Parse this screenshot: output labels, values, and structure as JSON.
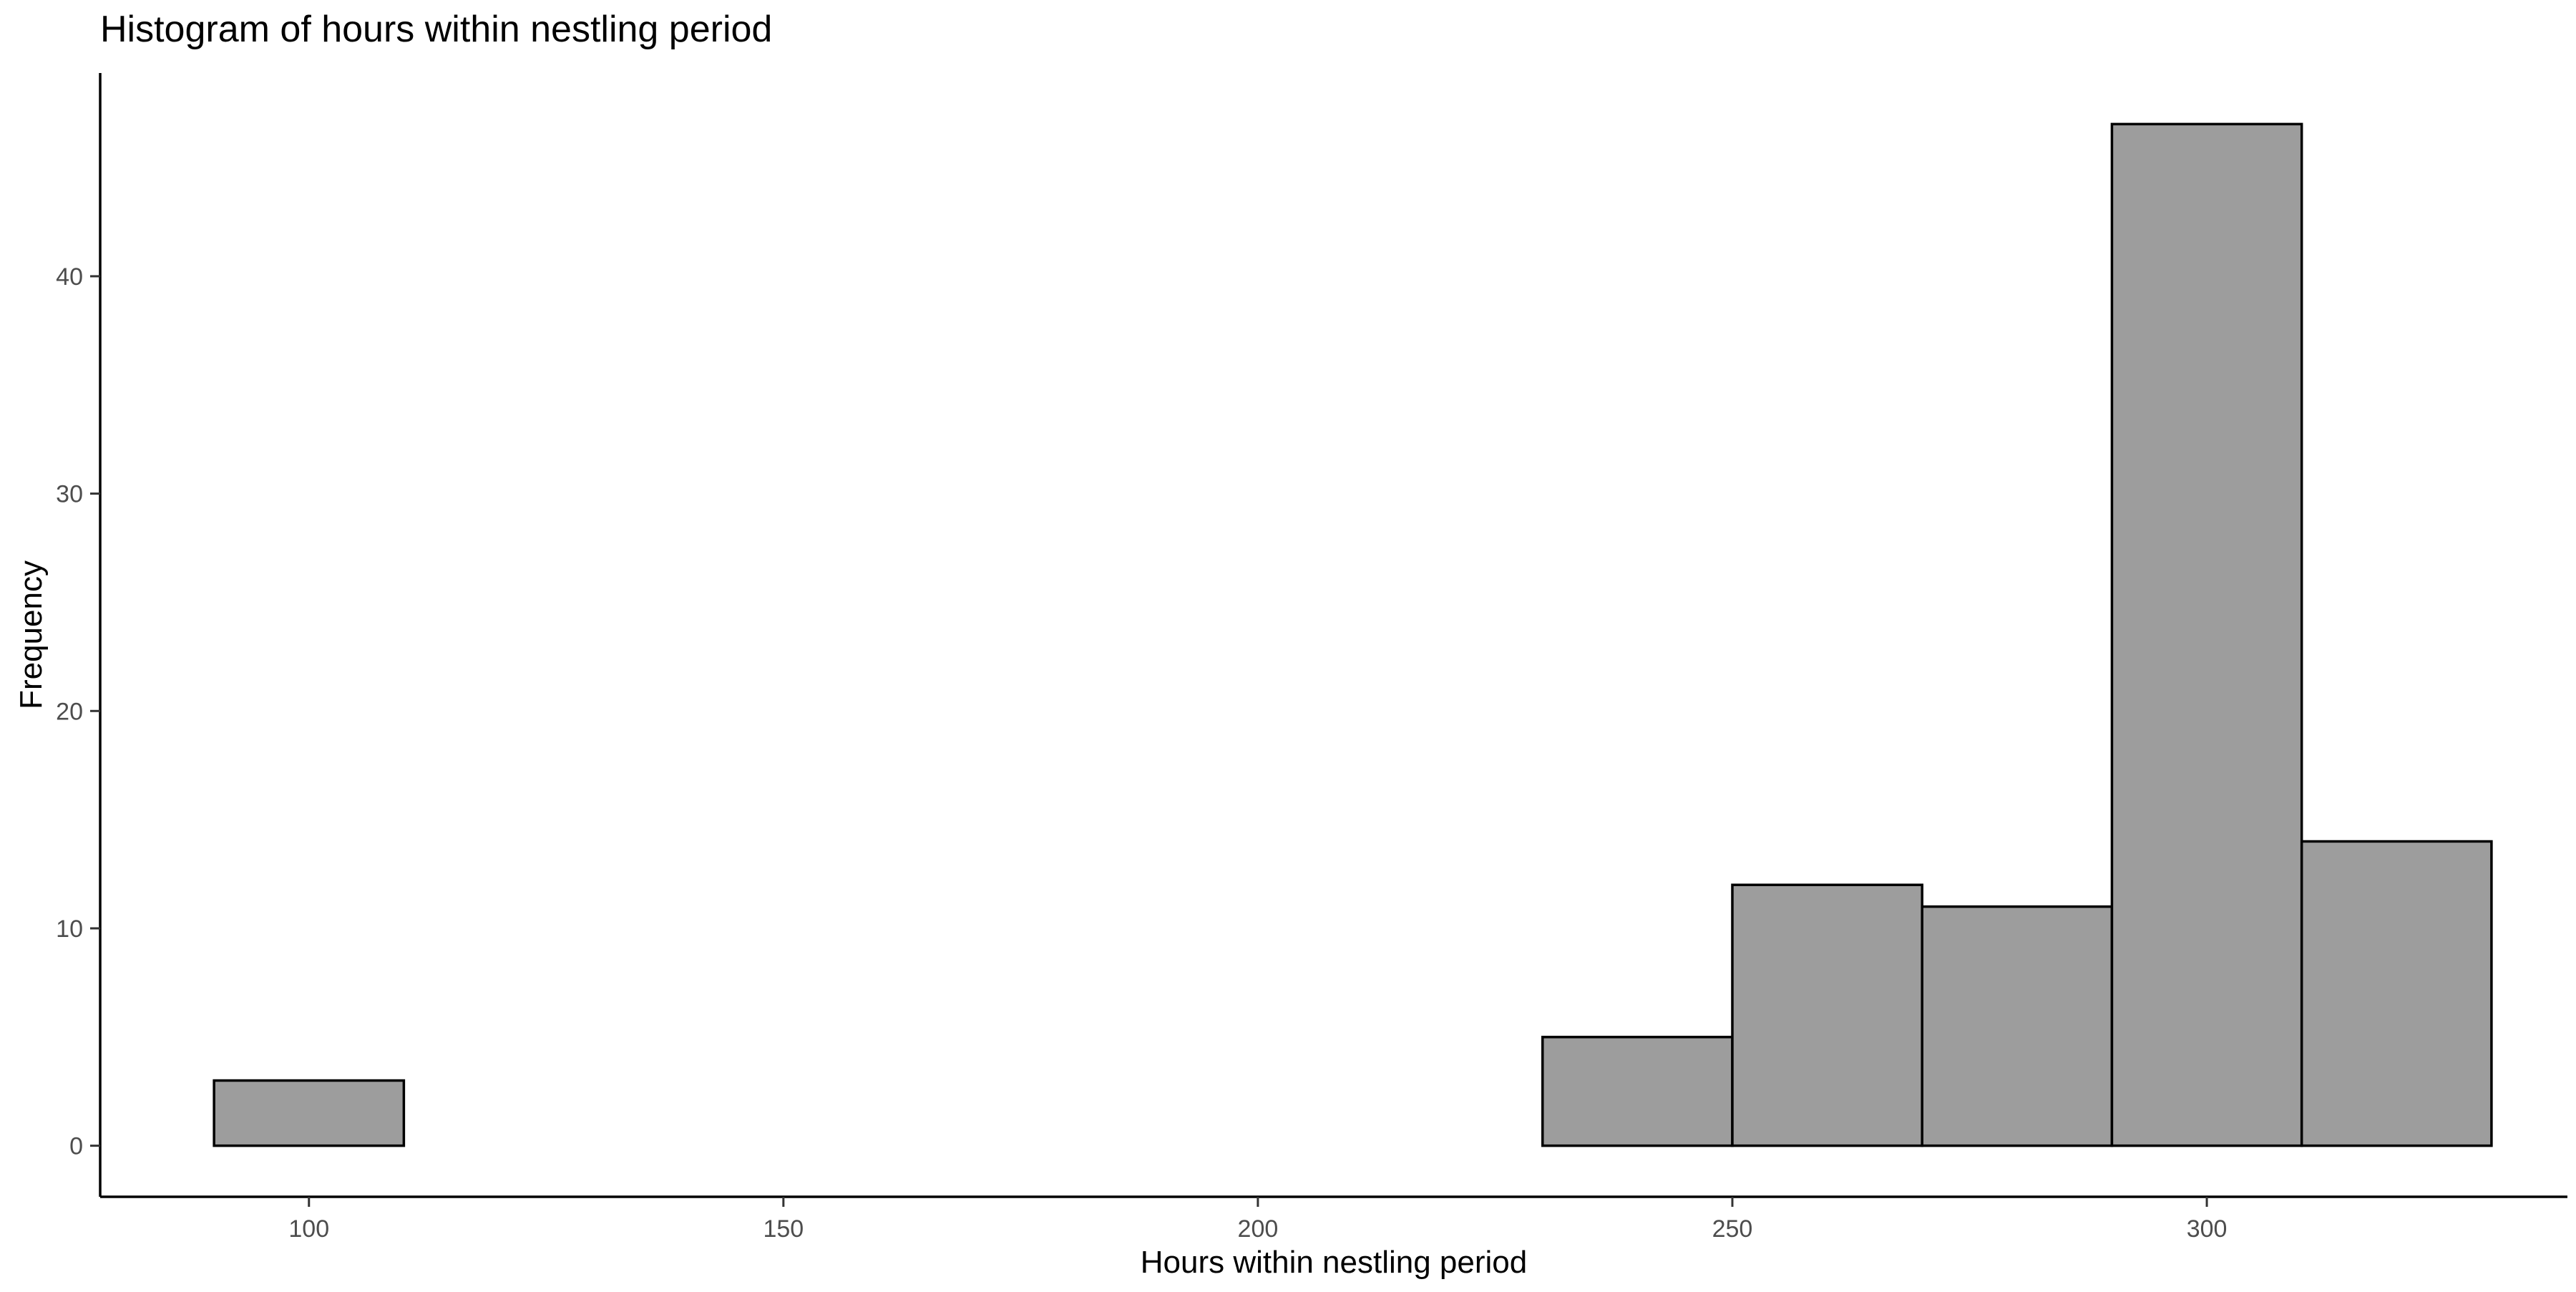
{
  "chart_data": {
    "type": "bar",
    "subtype": "histogram",
    "title": "Histogram of hours within nestling period",
    "xlabel": "Hours within nestling period",
    "ylabel": "Frequency",
    "bin_width": 20,
    "bins": [
      {
        "x0": 90,
        "x1": 110,
        "count": 3
      },
      {
        "x0": 110,
        "x1": 130,
        "count": 0
      },
      {
        "x0": 130,
        "x1": 150,
        "count": 0
      },
      {
        "x0": 150,
        "x1": 170,
        "count": 0
      },
      {
        "x0": 170,
        "x1": 190,
        "count": 0
      },
      {
        "x0": 190,
        "x1": 210,
        "count": 0
      },
      {
        "x0": 210,
        "x1": 230,
        "count": 0
      },
      {
        "x0": 230,
        "x1": 250,
        "count": 5
      },
      {
        "x0": 250,
        "x1": 270,
        "count": 12
      },
      {
        "x0": 270,
        "x1": 290,
        "count": 11
      },
      {
        "x0": 290,
        "x1": 310,
        "count": 47
      },
      {
        "x0": 310,
        "x1": 330,
        "count": 14
      }
    ],
    "xlim": [
      78,
      338
    ],
    "ylim": [
      -2.35,
      49.35
    ],
    "x_ticks": [
      {
        "value": 100,
        "label": "100"
      },
      {
        "value": 150,
        "label": "150"
      },
      {
        "value": 200,
        "label": "200"
      },
      {
        "value": 250,
        "label": "250"
      },
      {
        "value": 300,
        "label": "300"
      }
    ],
    "y_ticks": [
      {
        "value": 0,
        "label": "0"
      },
      {
        "value": 10,
        "label": "10"
      },
      {
        "value": 20,
        "label": "20"
      },
      {
        "value": 30,
        "label": "30"
      },
      {
        "value": 40,
        "label": "40"
      }
    ],
    "grid": false,
    "legend": "none",
    "colors": {
      "bar_fill": "#9d9d9d",
      "bar_stroke": "#000000",
      "axis": "#000000",
      "tick_text": "#4d4d4d"
    }
  }
}
